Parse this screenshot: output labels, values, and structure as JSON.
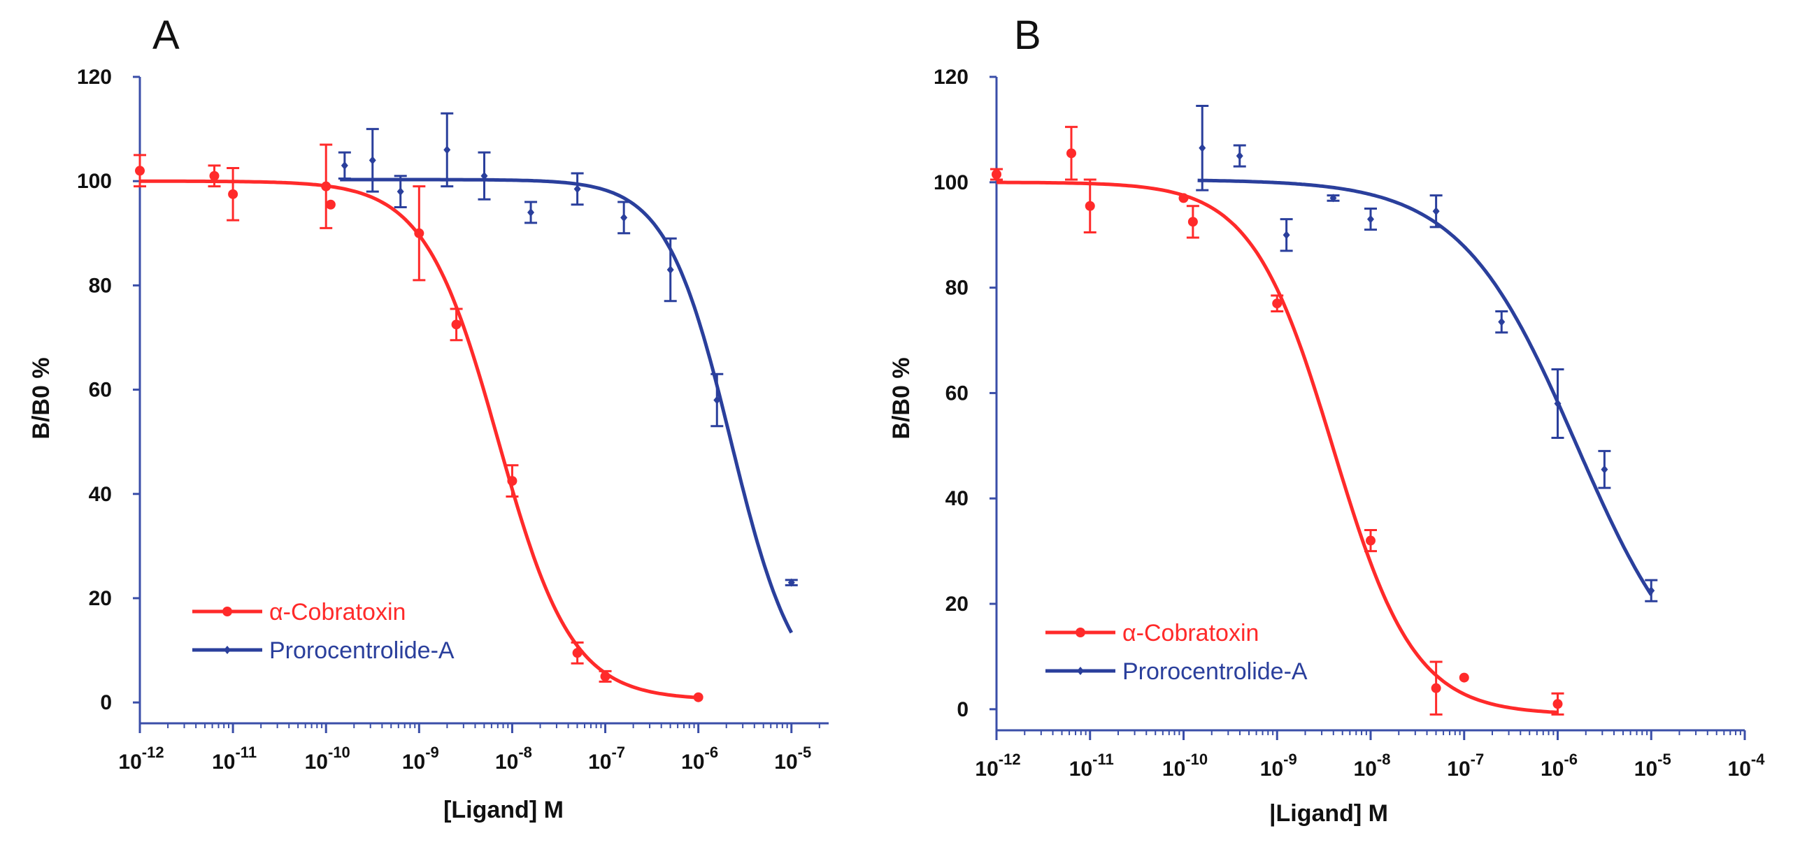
{
  "chart_data": [
    {
      "type": "scatter",
      "panel_label": "A",
      "title": "",
      "xlabel": "[Ligand] M",
      "ylabel": "B/B0 %",
      "xscale": "log",
      "xlim_exp": [
        -12,
        -4.6
      ],
      "ylim": [
        -4,
        120
      ],
      "x_tick_labels": [
        {
          "base": "10",
          "exp": "-12"
        },
        {
          "base": "10",
          "exp": "-11"
        },
        {
          "base": "10",
          "exp": "-10"
        },
        {
          "base": "10",
          "exp": "-9"
        },
        {
          "base": "10",
          "exp": "-8"
        },
        {
          "base": "10",
          "exp": "-7"
        },
        {
          "base": "10",
          "exp": "-6"
        },
        {
          "base": "10",
          "exp": "-5"
        }
      ],
      "y_tick_labels": [
        "0",
        "20",
        "40",
        "60",
        "80",
        "100",
        "120"
      ],
      "legend_position": "lower-left",
      "series": [
        {
          "name": "α-Cobratoxin",
          "color": "#ff2a2a",
          "marker": "circle",
          "points": [
            {
              "logx": -12.0,
              "y": 102,
              "err": 3
            },
            {
              "logx": -11.2,
              "y": 101,
              "err": 2
            },
            {
              "logx": -11.0,
              "y": 97.5,
              "err": 5
            },
            {
              "logx": -10.0,
              "y": 99,
              "err": 8
            },
            {
              "logx": -9.95,
              "y": 95.5,
              "err": 0
            },
            {
              "logx": -9.0,
              "y": 90,
              "err": 9
            },
            {
              "logx": -8.6,
              "y": 72.5,
              "err": 3
            },
            {
              "logx": -8.0,
              "y": 42.5,
              "err": 3
            },
            {
              "logx": -7.3,
              "y": 9.5,
              "err": 2
            },
            {
              "logx": -7.0,
              "y": 5,
              "err": 1
            },
            {
              "logx": -6.0,
              "y": 1,
              "err": 0
            }
          ],
          "fit": {
            "top": 100,
            "bottom": 0.5,
            "logIC50": -8.15,
            "hill": 1.1,
            "from": -12,
            "to": -6
          }
        },
        {
          "name": "Prorocentrolide-A",
          "color": "#2a3f9c",
          "marker": "diamond",
          "points": [
            {
              "logx": -9.8,
              "y": 103,
              "err": 2.5
            },
            {
              "logx": -9.5,
              "y": 104,
              "err": 6
            },
            {
              "logx": -9.2,
              "y": 98,
              "err": 3
            },
            {
              "logx": -8.7,
              "y": 106,
              "err": 7
            },
            {
              "logx": -8.3,
              "y": 101,
              "err": 4.5
            },
            {
              "logx": -7.8,
              "y": 94,
              "err": 2
            },
            {
              "logx": -7.3,
              "y": 98.5,
              "err": 3
            },
            {
              "logx": -6.8,
              "y": 93,
              "err": 3
            },
            {
              "logx": -6.3,
              "y": 83,
              "err": 6
            },
            {
              "logx": -5.8,
              "y": 58,
              "err": 5
            },
            {
              "logx": -5.0,
              "y": 23,
              "err": 0.5
            }
          ],
          "fit": {
            "top": 100.3,
            "bottom": 0,
            "logIC50": -5.65,
            "hill": 1.25,
            "from": -9.85,
            "to": -5
          }
        }
      ]
    },
    {
      "type": "scatter",
      "panel_label": "B",
      "title": "",
      "xlabel": "|Ligand] M",
      "ylabel": "B/B0 %",
      "xscale": "log",
      "xlim_exp": [
        -12,
        -4
      ],
      "ylim": [
        -4,
        120
      ],
      "x_tick_labels": [
        {
          "base": "10",
          "exp": "-12"
        },
        {
          "base": "10",
          "exp": "-11"
        },
        {
          "base": "10",
          "exp": "-10"
        },
        {
          "base": "10",
          "exp": "-9"
        },
        {
          "base": "10",
          "exp": "-8"
        },
        {
          "base": "10",
          "exp": "-7"
        },
        {
          "base": "10",
          "exp": "-6"
        },
        {
          "base": "10",
          "exp": "-5"
        },
        {
          "base": "10",
          "exp": "-4"
        }
      ],
      "y_tick_labels": [
        "0",
        "20",
        "40",
        "60",
        "80",
        "100",
        "120"
      ],
      "legend_position": "lower-left",
      "series": [
        {
          "name": "α-Cobratoxin",
          "color": "#ff2a2a",
          "marker": "circle",
          "points": [
            {
              "logx": -12.0,
              "y": 101.5,
              "err": 1
            },
            {
              "logx": -11.2,
              "y": 105.5,
              "err": 5
            },
            {
              "logx": -11.0,
              "y": 95.5,
              "err": 5
            },
            {
              "logx": -10.0,
              "y": 97,
              "err": 0
            },
            {
              "logx": -9.9,
              "y": 92.5,
              "err": 3
            },
            {
              "logx": -9.0,
              "y": 77,
              "err": 1.5
            },
            {
              "logx": -8.0,
              "y": 32,
              "err": 2
            },
            {
              "logx": -7.3,
              "y": 4,
              "err": 5
            },
            {
              "logx": -7.0,
              "y": 6,
              "err": 0
            },
            {
              "logx": -6.0,
              "y": 1,
              "err": 2
            }
          ],
          "fit": {
            "top": 100,
            "bottom": -1,
            "logIC50": -8.4,
            "hill": 1.0,
            "from": -12,
            "to": -6
          }
        },
        {
          "name": "Prorocentrolide-A",
          "color": "#2a3f9c",
          "marker": "diamond",
          "points": [
            {
              "logx": -9.8,
              "y": 106.5,
              "err": 8
            },
            {
              "logx": -9.4,
              "y": 105,
              "err": 2
            },
            {
              "logx": -8.9,
              "y": 90,
              "err": 3
            },
            {
              "logx": -8.4,
              "y": 97,
              "err": 0.5
            },
            {
              "logx": -8.0,
              "y": 93,
              "err": 2
            },
            {
              "logx": -7.3,
              "y": 94.5,
              "err": 3
            },
            {
              "logx": -6.6,
              "y": 73.5,
              "err": 2
            },
            {
              "logx": -6.0,
              "y": 58,
              "err": 6.5
            },
            {
              "logx": -5.5,
              "y": 45.5,
              "err": 3.5
            },
            {
              "logx": -5.0,
              "y": 22.5,
              "err": 2
            }
          ],
          "fit": {
            "top": 100.5,
            "bottom": 0,
            "logIC50": -5.8,
            "hill": 0.7,
            "from": -9.85,
            "to": -5
          }
        }
      ]
    }
  ]
}
